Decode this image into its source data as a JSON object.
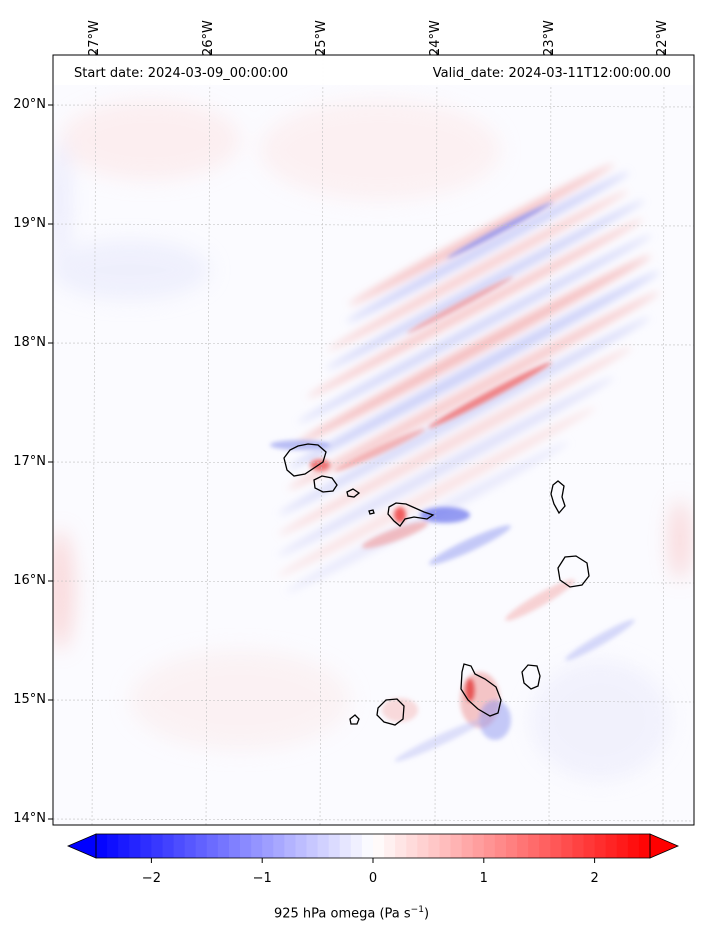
{
  "map": {
    "start_date": "Start date: 2024-03-09_00:00:00",
    "valid_date": "Valid_date: 2024-03-11T12:00:00.00",
    "lon_labels": [
      "27°W",
      "26°W",
      "25°W",
      "24°W",
      "23°W",
      "22°W"
    ],
    "lat_labels": [
      "20°N",
      "19°N",
      "18°N",
      "17°N",
      "16°N",
      "15°N",
      "14°N"
    ],
    "lon_range": [
      -27.35,
      -21.6
    ],
    "lat_range": [
      13.95,
      20.42
    ],
    "grid": true,
    "field": "925 hPa omega",
    "islands": [
      "Santo Antão",
      "São Vicente",
      "Santa Luzia",
      "São Nicolau",
      "Sal",
      "Boa Vista",
      "Maio",
      "Santiago",
      "Fogo",
      "Brava"
    ]
  },
  "colorbar": {
    "label_main": "925 hPa omega (Pa s",
    "label_exp": "−1",
    "label_close": ")",
    "ticks": [
      "−2",
      "−1",
      "0",
      "1",
      "2"
    ],
    "tick_values": [
      -2,
      -1,
      0,
      1,
      2
    ],
    "range": [
      -2.5,
      2.5
    ],
    "extend": "both",
    "colormap": "bwr",
    "low_color": "#0000ff",
    "mid_color": "#ffffff",
    "high_color": "#ff0000"
  }
}
